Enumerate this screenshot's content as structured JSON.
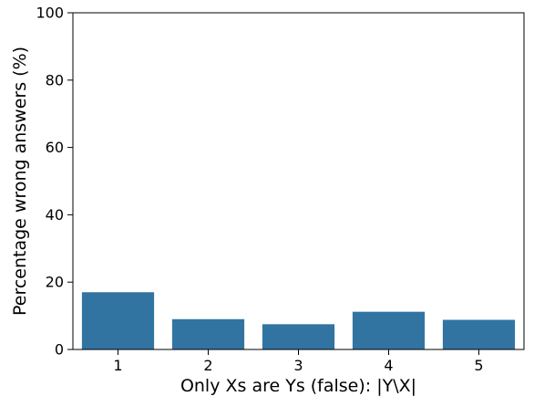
{
  "chart_data": {
    "type": "bar",
    "title": "",
    "xlabel": "Only Xs are Ys (false): |Y\\X|",
    "ylabel": "Percentage wrong answers (%)",
    "categories": [
      "1",
      "2",
      "3",
      "4",
      "5"
    ],
    "values": [
      17,
      9,
      7.5,
      11.2,
      8.8
    ],
    "ylim": [
      0,
      100
    ],
    "yticks": [
      "0",
      "20",
      "40",
      "60",
      "80",
      "100"
    ],
    "grid": false,
    "legend": "none",
    "colors": {
      "bar": "#3274a1",
      "axis": "#000000",
      "background": "#ffffff"
    }
  }
}
